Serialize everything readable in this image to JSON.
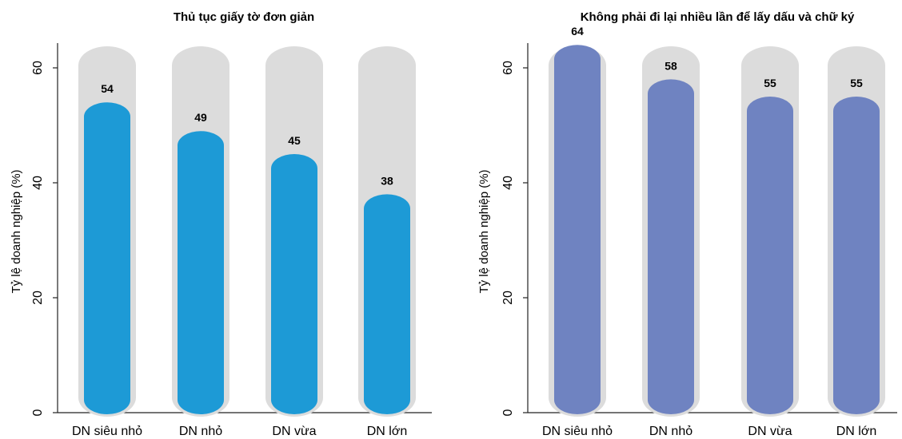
{
  "chart_data": [
    {
      "type": "bar",
      "title": "Thủ tục giấy tờ đơn giản",
      "ylabel": "Tỷ lệ doanh nghiệp (%)",
      "categories": [
        "DN siêu nhỏ",
        "DN nhỏ",
        "DN vừa",
        "DN lớn"
      ],
      "values": [
        54,
        49,
        45,
        38
      ],
      "value_labels": [
        "54",
        "49",
        "45",
        "38"
      ],
      "ylim": [
        0,
        65
      ],
      "yticks": [
        0,
        20,
        40,
        60
      ],
      "ytick_labels": [
        "0",
        "20",
        "40",
        "60"
      ],
      "bar_color": "#1d9ad6",
      "track_color": "#dcdcdc",
      "grid": false
    },
    {
      "type": "bar",
      "title": "Không phải đi lại nhiều lần để lấy dấu và chữ ký",
      "ylabel": "Tỷ lệ doanh nghiệp (%)",
      "categories": [
        "DN siêu nhỏ",
        "DN nhỏ",
        "DN vừa",
        "DN lớn"
      ],
      "values": [
        64,
        58,
        55,
        55
      ],
      "value_labels": [
        "64",
        "58",
        "55",
        "55"
      ],
      "ylim": [
        0,
        65
      ],
      "yticks": [
        0,
        20,
        40,
        60
      ],
      "ytick_labels": [
        "0",
        "20",
        "40",
        "60"
      ],
      "bar_color": "#6f83c1",
      "track_color": "#dcdcdc",
      "grid": false
    }
  ]
}
